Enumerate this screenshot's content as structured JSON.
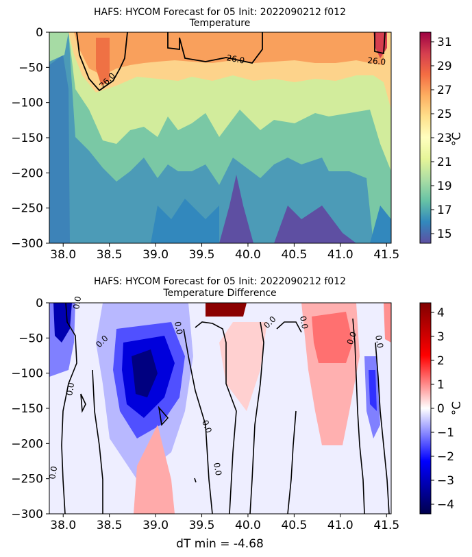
{
  "chart_data": [
    {
      "type": "heatmap",
      "title_line1": "HAFS: HYCOM Forecast for 05 Init: 2022090212 f012",
      "title_line2": "Temperature",
      "xlim": [
        37.85,
        41.55
      ],
      "ylim": [
        -300,
        0
      ],
      "xticks": [
        38.0,
        38.5,
        39.0,
        39.5,
        40.0,
        40.5,
        41.0,
        41.5
      ],
      "xtick_labels": [
        "38.0",
        "38.5",
        "39.0",
        "39.5",
        "40.0",
        "40.5",
        "41.0",
        "41.5"
      ],
      "yticks": [
        0,
        -50,
        -100,
        -150,
        -200,
        -250,
        -300
      ],
      "ytick_labels": [
        "0",
        "−50",
        "−100",
        "−150",
        "−200",
        "−250",
        "−300"
      ],
      "colorbar": {
        "cmap": "Spectral_r",
        "range": [
          14.2,
          31.8
        ],
        "ticks": [
          15,
          17,
          19,
          21,
          23,
          25,
          27,
          29,
          31
        ],
        "tick_labels": [
          "15",
          "17",
          "19",
          "21",
          "23",
          "25",
          "27",
          "29",
          "31"
        ],
        "unit": "°C"
      },
      "contour_level": 26.0,
      "contour_labels": [
        "26.0",
        "26.0",
        "26.0"
      ]
    },
    {
      "type": "heatmap",
      "title_line1": "HAFS: HYCOM Forecast for 05 Init: 2022090212 f012",
      "title_line2": "Temperature Difference",
      "xlim": [
        37.85,
        41.55
      ],
      "ylim": [
        -300,
        0
      ],
      "xticks": [
        38.0,
        38.5,
        39.0,
        39.5,
        40.0,
        40.5,
        41.0,
        41.5
      ],
      "xtick_labels": [
        "38.0",
        "38.5",
        "39.0",
        "39.5",
        "40.0",
        "40.5",
        "41.0",
        "41.5"
      ],
      "yticks": [
        0,
        -50,
        -100,
        -150,
        -200,
        -250,
        -300
      ],
      "ytick_labels": [
        "0",
        "−50",
        "−100",
        "−150",
        "−200",
        "−250",
        "−300"
      ],
      "colorbar": {
        "cmap": "seismic",
        "range": [
          -4.4,
          4.4
        ],
        "ticks": [
          4,
          3,
          2,
          1,
          0,
          -1,
          -2,
          -3,
          -4
        ],
        "tick_labels": [
          "4",
          "3",
          "2",
          "1",
          "0",
          "−1",
          "−2",
          "−3",
          "−4"
        ],
        "unit": "°C"
      },
      "contour_level": 0.0,
      "contour_labels": [
        "0.0",
        "0.0",
        "0.0",
        "0.0",
        "0.0",
        "0.0",
        "0.0",
        "0.0",
        "0.0",
        "0.0",
        "0.0"
      ],
      "xlabel": "dT min = -4.68",
      "dT_min": -4.68
    }
  ]
}
